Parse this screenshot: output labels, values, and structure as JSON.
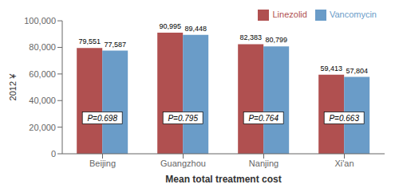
{
  "chart_data": {
    "type": "bar",
    "categories": [
      "Beijing",
      "Guangzhou",
      "Nanjing",
      "Xi'an"
    ],
    "series": [
      {
        "name": "Linezolid",
        "color": "#b05050",
        "values": [
          79551,
          90995,
          82383,
          59413
        ],
        "value_labels": [
          "79,551",
          "90,995",
          "82,383",
          "59,413"
        ]
      },
      {
        "name": "Vancomycin",
        "color": "#6a9cc8",
        "values": [
          77587,
          89448,
          80799,
          57804
        ],
        "value_labels": [
          "77,587",
          "89,448",
          "80,799",
          "57,804"
        ]
      }
    ],
    "annotations": [
      "P=0.698",
      "P=0.795",
      "P=0.764",
      "P=0.663"
    ],
    "xlabel": "Mean total treatment cost",
    "ylabel": "2012 ¥",
    "ylim": [
      0,
      100000
    ],
    "yticks": [
      0,
      {
        "value": 20000,
        "label": "20,000"
      },
      {
        "value": 40000,
        "label": "40,000"
      },
      {
        "value": 60000,
        "label": "60,000"
      },
      {
        "value": 80000,
        "label": "80,000"
      },
      {
        "value": 100000,
        "label": "100,000"
      }
    ],
    "data_labels": true,
    "legend": "upper right",
    "grid": false
  }
}
